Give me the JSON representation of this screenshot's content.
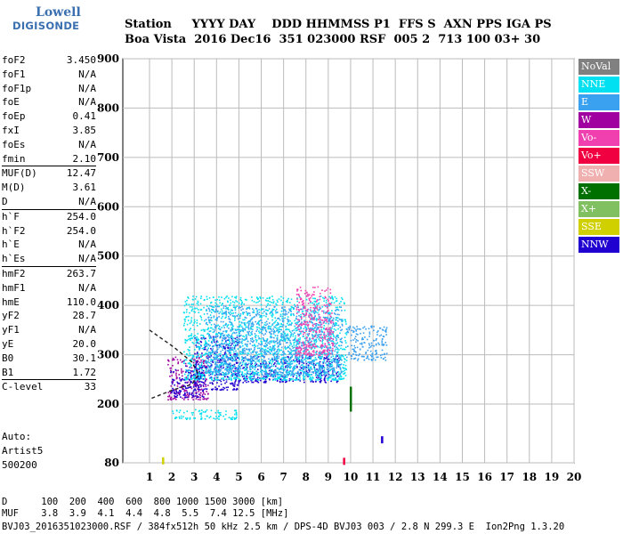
{
  "logo": {
    "line1": "Lowell",
    "line2": "DIGISONDE"
  },
  "header": {
    "line1": "Station     YYYY DAY    DDD HHMMSS P1  FFS S  AXN PPS IGA PS",
    "line2": "Boa Vista  2016 Dec16  351 023000 RSF  005 2  713 100 03+ 30"
  },
  "params": [
    {
      "name": "foF2",
      "value": "3.450"
    },
    {
      "name": "foF1",
      "value": "N/A"
    },
    {
      "name": "foF1p",
      "value": "N/A"
    },
    {
      "name": "foE",
      "value": "N/A"
    },
    {
      "name": "foEp",
      "value": "0.41"
    },
    {
      "name": "fxI",
      "value": "3.85"
    },
    {
      "name": "foEs",
      "value": "N/A"
    },
    {
      "name": "fmin",
      "value": "2.10",
      "sep": true
    },
    {
      "name": "MUF(D)",
      "value": "12.47"
    },
    {
      "name": "M(D)",
      "value": "3.61"
    },
    {
      "name": "D",
      "value": "N/A",
      "sep": true
    },
    {
      "name": "h`F",
      "value": "254.0"
    },
    {
      "name": "h`F2",
      "value": "254.0"
    },
    {
      "name": "h`E",
      "value": "N/A"
    },
    {
      "name": "h`Es",
      "value": "N/A",
      "sep": true
    },
    {
      "name": "hmF2",
      "value": "263.7"
    },
    {
      "name": "hmF1",
      "value": "N/A"
    },
    {
      "name": "hmE",
      "value": "110.0"
    },
    {
      "name": "yF2",
      "value": "28.7"
    },
    {
      "name": "yF1",
      "value": "N/A"
    },
    {
      "name": "yE",
      "value": "20.0"
    },
    {
      "name": "B0",
      "value": "30.1"
    },
    {
      "name": "B1",
      "value": "1.72",
      "sep": true
    },
    {
      "name": "C-level",
      "value": "33",
      "sep": true
    }
  ],
  "auto": {
    "line1": "Auto:",
    "line2": "Artist5",
    "line3": "500200"
  },
  "legend": [
    {
      "label": "NoVal",
      "color": "#808080"
    },
    {
      "label": "NNE",
      "color": "#00e0f0"
    },
    {
      "label": "E",
      "color": "#3aa0f0"
    },
    {
      "label": "W",
      "color": "#a000a0"
    },
    {
      "label": "Vo-",
      "color": "#f040b0"
    },
    {
      "label": "Vo+",
      "color": "#f00040"
    },
    {
      "label": "SSW",
      "color": "#f0b0b0"
    },
    {
      "label": "X-",
      "color": "#007000"
    },
    {
      "label": "X+",
      "color": "#80c060"
    },
    {
      "label": "SSE",
      "color": "#d0d000"
    },
    {
      "label": "NNW",
      "color": "#2000d0"
    }
  ],
  "chart_data": {
    "type": "scatter",
    "xlabel": "",
    "ylabel": "",
    "xlim": [
      1,
      20
    ],
    "ylim": [
      80,
      900
    ],
    "x_ticks": [
      1,
      2,
      3,
      4,
      5,
      6,
      7,
      8,
      9,
      10,
      11,
      12,
      13,
      14,
      15,
      16,
      17,
      18,
      19,
      20
    ],
    "y_ticks": [
      80,
      200,
      300,
      400,
      500,
      600,
      700,
      800,
      900
    ],
    "grid": true,
    "trace": {
      "name": "hmF2 profile",
      "points": [
        [
          1,
          350
        ],
        [
          2.1,
          315
        ],
        [
          2.9,
          285
        ],
        [
          3.2,
          260
        ],
        [
          2.9,
          240
        ],
        [
          2,
          228
        ],
        [
          1,
          210
        ]
      ]
    },
    "echo_regions": [
      {
        "f0": 1.8,
        "f1": 3.6,
        "h0": 210,
        "h1": 300,
        "color": "#a000a0"
      },
      {
        "f0": 1.9,
        "f1": 3.4,
        "h0": 215,
        "h1": 280,
        "color": "#2000d0"
      },
      {
        "f0": 3.0,
        "f1": 5.0,
        "h0": 230,
        "h1": 340,
        "color": "#2000d0"
      },
      {
        "f0": 4.8,
        "f1": 9.5,
        "h0": 245,
        "h1": 300,
        "color": "#2000d0"
      },
      {
        "f0": 2.5,
        "f1": 9.8,
        "h0": 250,
        "h1": 420,
        "color": "#00e0f0"
      },
      {
        "f0": 3.5,
        "f1": 9.6,
        "h0": 260,
        "h1": 400,
        "color": "#3aa0f0"
      },
      {
        "f0": 7.5,
        "f1": 9.2,
        "h0": 300,
        "h1": 440,
        "color": "#f040b0"
      },
      {
        "f0": 9.8,
        "f1": 11.6,
        "h0": 290,
        "h1": 360,
        "color": "#3aa0f0"
      },
      {
        "f0": 2.0,
        "f1": 5.0,
        "h0": 170,
        "h1": 190,
        "color": "#00e0f0"
      }
    ],
    "isolated_echoes": [
      {
        "f": 11.4,
        "h": 127,
        "color": "#2000d0"
      },
      {
        "f": 9.7,
        "h": 83,
        "color": "#f00040"
      },
      {
        "f": 1.6,
        "h": 84,
        "color": "#d0d000"
      },
      {
        "f": 10.0,
        "h": 210,
        "color": "#007000"
      }
    ]
  },
  "footer": {
    "line1": "D      100  200  400  600  800 1000 1500 3000 [km]",
    "line2": "MUF    3.8  3.9  4.1  4.4  4.8  5.5  7.4 12.5 [MHz]",
    "line3": "BVJ03_2016351023000.RSF / 384fx512h 50 kHz 2.5 km / DPS-4D BVJ03 003 / 2.8 N 299.3 E  Ion2Png 1.3.20"
  }
}
